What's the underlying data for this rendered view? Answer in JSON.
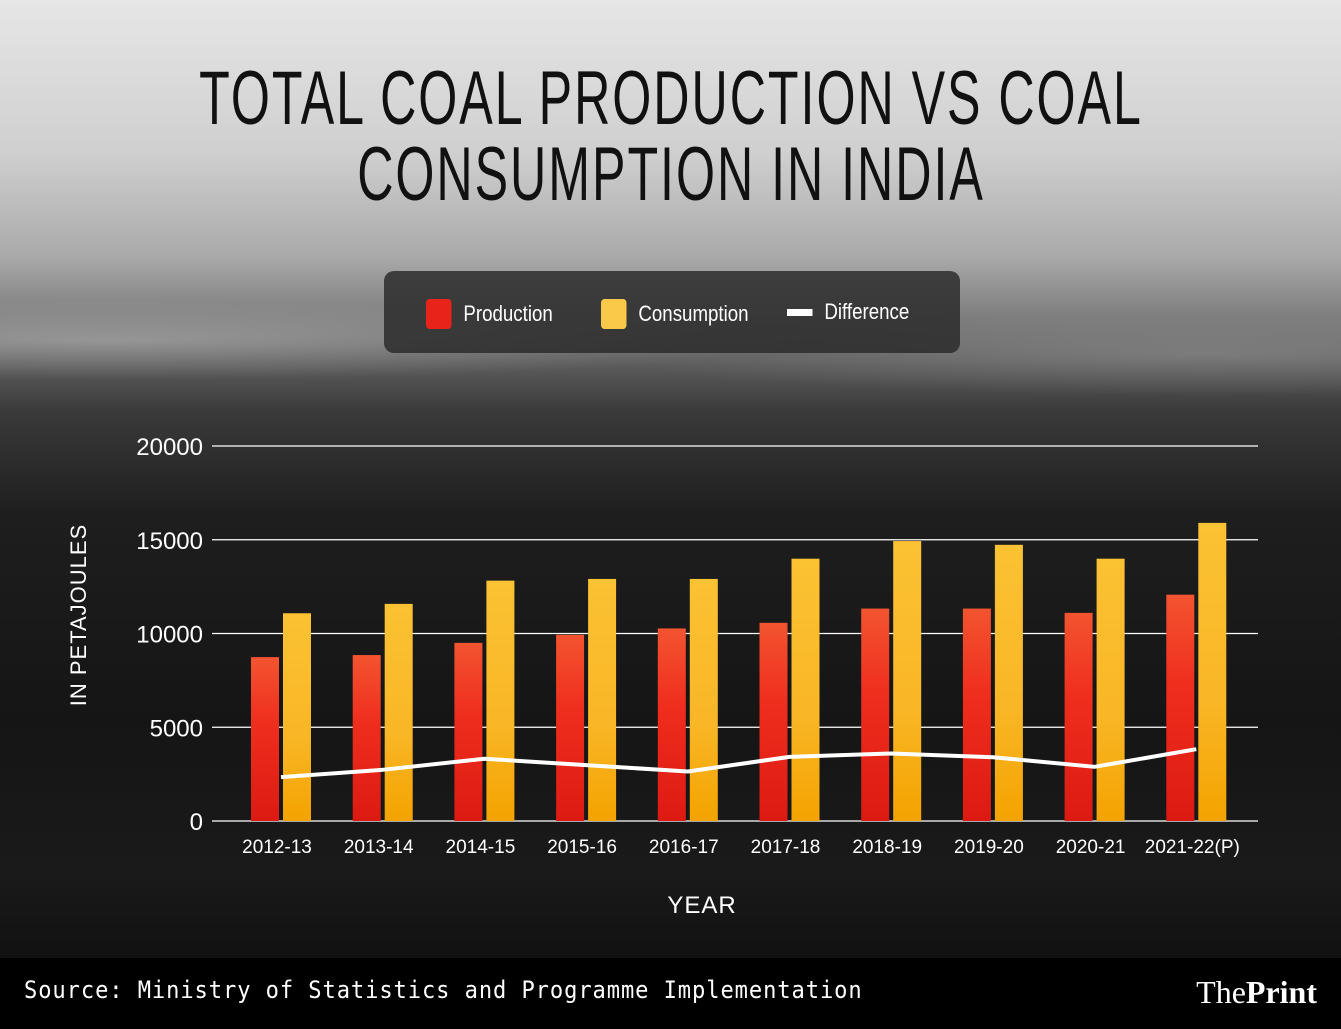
{
  "chart_data": {
    "type": "bar",
    "title": "TOTAL COAL PRODUCTION VS COAL CONSUMPTION IN INDIA",
    "title_lines": [
      "TOTAL COAL PRODUCTION VS COAL",
      "CONSUMPTION IN INDIA"
    ],
    "xlabel": "YEAR",
    "ylabel": "IN PETAJOULES",
    "ylim": [
      0,
      20000
    ],
    "yticks": [
      0,
      5000,
      10000,
      15000,
      20000
    ],
    "grid": true,
    "legend_placement": "top-center",
    "categories": [
      "2012-13",
      "2013-14",
      "2014-15",
      "2015-16",
      "2016-17",
      "2017-18",
      "2018-19",
      "2019-20",
      "2020-21",
      "2021-22(P)"
    ],
    "series": [
      {
        "name": "Production",
        "type": "bar",
        "color": "#e8241a",
        "values": [
          8740,
          8850,
          9500,
          9930,
          10270,
          10570,
          11330,
          11330,
          11100,
          12070
        ]
      },
      {
        "name": "Consumption",
        "type": "bar",
        "color": "#f8b52a",
        "values": [
          11080,
          11580,
          12820,
          12910,
          12910,
          13990,
          14930,
          14730,
          13990,
          15900
        ]
      },
      {
        "name": "Difference",
        "type": "line",
        "color": "#ffffff",
        "values": [
          2340,
          2730,
          3320,
          2980,
          2640,
          3420,
          3600,
          3400,
          2890,
          3830
        ]
      }
    ]
  },
  "footer": {
    "source": "Source: Ministry of Statistics and Programme Implementation",
    "logo_the": "The",
    "logo_print": "Print"
  }
}
